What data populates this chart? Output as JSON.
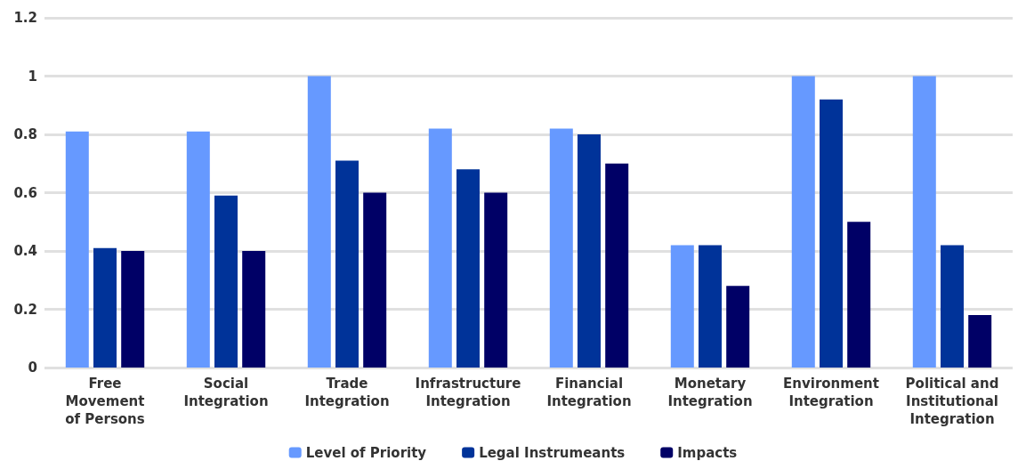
{
  "chart_data": {
    "type": "bar",
    "categories": [
      "Free\nMovement\nof Persons",
      "Social\nIntegration",
      "Trade\nIntegration",
      "Infrastructure\nIntegration",
      "Financial\nIntegration",
      "Monetary\nIntegration",
      "Environment\nIntegration",
      "Political and\nInstitutional\nIntegration"
    ],
    "series": [
      {
        "name": "Level of Priority",
        "color": "#6699ff",
        "values": [
          0.81,
          0.81,
          1.0,
          0.82,
          0.82,
          0.42,
          1.0,
          1.0
        ]
      },
      {
        "name": "Legal Instrumeants",
        "color": "#003399",
        "values": [
          0.41,
          0.59,
          0.71,
          0.68,
          0.8,
          0.42,
          0.92,
          0.42
        ]
      },
      {
        "name": "Impacts",
        "color": "#000066",
        "values": [
          0.4,
          0.4,
          0.6,
          0.6,
          0.7,
          0.28,
          0.5,
          0.18
        ]
      }
    ],
    "ylim": [
      0,
      1.2
    ],
    "yticks": [
      0,
      0.2,
      0.4,
      0.6,
      0.8,
      1,
      1.2
    ],
    "grid": "y",
    "legend": "bottom"
  }
}
